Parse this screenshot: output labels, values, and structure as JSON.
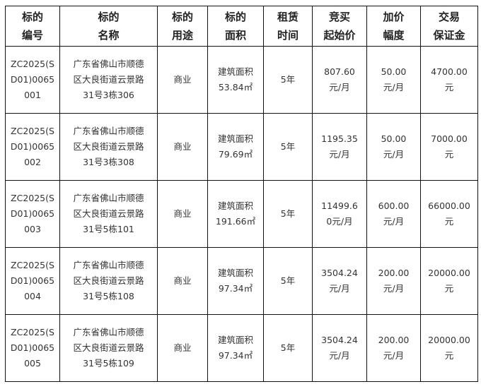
{
  "headers": [
    [
      "标的",
      "编号"
    ],
    [
      "标的",
      "名称"
    ],
    [
      "标的",
      "用途"
    ],
    [
      "标的",
      "面积"
    ],
    [
      "租赁",
      "时间"
    ],
    [
      "竞买",
      "起始价"
    ],
    [
      "加价",
      "幅度"
    ],
    [
      "交易",
      "保证金"
    ]
  ],
  "rows": [
    [
      [
        "ZC2025(S",
        "D01)0065",
        "001"
      ],
      [
        "广东省佛山市顺德",
        "区大良街道云景路",
        "31号3栋306"
      ],
      [
        "商业"
      ],
      [
        "建筑面积",
        "53.84㎡"
      ],
      [
        "5年"
      ],
      [
        "807.60",
        "元/月"
      ],
      [
        "50.00",
        "元/月"
      ],
      [
        "4700.00",
        "元"
      ]
    ],
    [
      [
        "ZC2025(S",
        "D01)0065",
        "002"
      ],
      [
        "广东省佛山市顺德",
        "区大良街道云景路",
        "31号3栋308"
      ],
      [
        "商业"
      ],
      [
        "建筑面积",
        "79.69㎡"
      ],
      [
        "5年"
      ],
      [
        "1195.35",
        "元/月"
      ],
      [
        "50.00",
        "元/月"
      ],
      [
        "7000.00",
        "元"
      ]
    ],
    [
      [
        "ZC2025(S",
        "D01)0065",
        "003"
      ],
      [
        "广东省佛山市顺德",
        "区大良街道云景路",
        "31号5栋101"
      ],
      [
        "商业"
      ],
      [
        "建筑面积",
        "191.66㎡"
      ],
      [
        "5年"
      ],
      [
        "11499.6",
        "0元/月"
      ],
      [
        "600.00",
        "元/月"
      ],
      [
        "66000.00",
        "元"
      ]
    ],
    [
      [
        "ZC2025(S",
        "D01)0065",
        "004"
      ],
      [
        "广东省佛山市顺德",
        "区大良街道云景路",
        "31号5栋108"
      ],
      [
        "商业"
      ],
      [
        "建筑面积",
        "97.34㎡"
      ],
      [
        "5年"
      ],
      [
        "3504.24",
        "元/月"
      ],
      [
        "200.00",
        "元/月"
      ],
      [
        "20000.00",
        "元"
      ]
    ],
    [
      [
        "ZC2025(S",
        "D01)0065",
        "005"
      ],
      [
        "广东省佛山市顺德",
        "区大良街道云景路",
        "31号5栋109"
      ],
      [
        "商业"
      ],
      [
        "建筑面积",
        "97.34㎡"
      ],
      [
        "5年"
      ],
      [
        "3504.24",
        "元/月"
      ],
      [
        "200.00",
        "元/月"
      ],
      [
        "20000.00",
        "元"
      ]
    ]
  ]
}
